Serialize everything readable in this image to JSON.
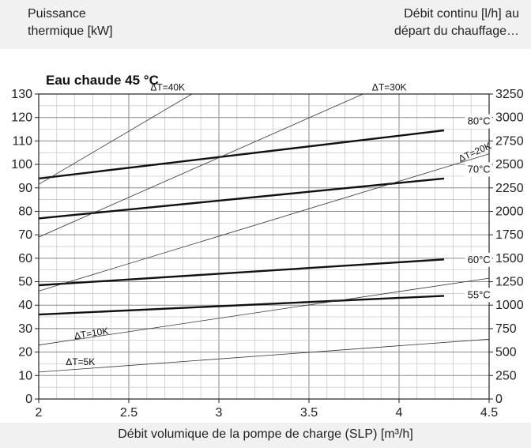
{
  "labels": {
    "ylabel_left": [
      "Puissance",
      "thermique [kW]"
    ],
    "ylabel_right": [
      "Débit continu [l/h] au",
      "départ du chauffage…"
    ],
    "xlabel": "Débit volumique de la pompe de charge (SLP) [m³/h]",
    "title": "Eau chaude 45 °C"
  },
  "chart_data": {
    "type": "line",
    "title": "Eau chaude 45 °C",
    "xlabel": "Débit volumique de la pompe de charge (SLP) [m³/h]",
    "ylabel": "Puissance thermique [kW]",
    "y2label": "Débit continu [l/h] au départ du chauffage…",
    "xlim": [
      2,
      4.5
    ],
    "ylim": [
      0,
      130
    ],
    "y2lim": [
      0,
      3250
    ],
    "x_ticks": [
      "2",
      "2.5",
      "3",
      "3.5",
      "4",
      "4.5"
    ],
    "y_ticks": [
      "0",
      "10",
      "20",
      "30",
      "40",
      "50",
      "60",
      "70",
      "80",
      "90",
      "100",
      "110",
      "120",
      "130"
    ],
    "y2_ticks": [
      "0",
      "250",
      "500",
      "750",
      "1000",
      "1250",
      "1500",
      "1750",
      "2000",
      "2250",
      "2500",
      "2750",
      "3000",
      "3250"
    ],
    "grid": true,
    "series": [
      {
        "name": "80°C",
        "style": "thick",
        "x": [
          2,
          4.25
        ],
        "y": [
          94,
          114.5
        ]
      },
      {
        "name": "70°C",
        "style": "thick",
        "x": [
          2,
          4.25
        ],
        "y": [
          77,
          94
        ]
      },
      {
        "name": "60°C",
        "style": "thick",
        "x": [
          2,
          4.25
        ],
        "y": [
          48.5,
          59.5
        ]
      },
      {
        "name": "55°C",
        "style": "thick",
        "x": [
          2,
          4.25
        ],
        "y": [
          36,
          44
        ]
      },
      {
        "name": "ΔT=40K",
        "style": "thin",
        "x": [
          2,
          2.85
        ],
        "y": [
          91.5,
          130
        ]
      },
      {
        "name": "ΔT=30K",
        "style": "thin",
        "x": [
          2,
          3.8
        ],
        "y": [
          69,
          130
        ]
      },
      {
        "name": "ΔT=20K",
        "style": "thin",
        "x": [
          2,
          4.5
        ],
        "y": [
          46,
          104.5
        ]
      },
      {
        "name": "ΔT=10K",
        "style": "thin",
        "x": [
          2,
          4.5
        ],
        "y": [
          23,
          51.5
        ]
      },
      {
        "name": "ΔT=5K",
        "style": "thin",
        "x": [
          2,
          4.5
        ],
        "y": [
          11.5,
          25.5
        ]
      }
    ],
    "line_labels": [
      {
        "text": "ΔT=40K",
        "x": 2.62,
        "y": 131.5,
        "rot": 0
      },
      {
        "text": "ΔT=30K",
        "x": 3.85,
        "y": 131.5,
        "rot": 0
      },
      {
        "text": "ΔT=20K",
        "x": 4.34,
        "y": 101,
        "rot": -24
      },
      {
        "text": "ΔT=10K",
        "x": 2.2,
        "y": 25.5,
        "rot": -9
      },
      {
        "text": "ΔT=5K",
        "x": 2.15,
        "y": 14.5,
        "rot": 0
      },
      {
        "text": "80°C",
        "x": 4.38,
        "y": 117,
        "rot": 0
      },
      {
        "text": "70°C",
        "x": 4.38,
        "y": 96.5,
        "rot": 0
      },
      {
        "text": "60°C",
        "x": 4.38,
        "y": 58,
        "rot": 0
      },
      {
        "text": "55°C",
        "x": 4.38,
        "y": 43,
        "rot": 0
      }
    ]
  }
}
